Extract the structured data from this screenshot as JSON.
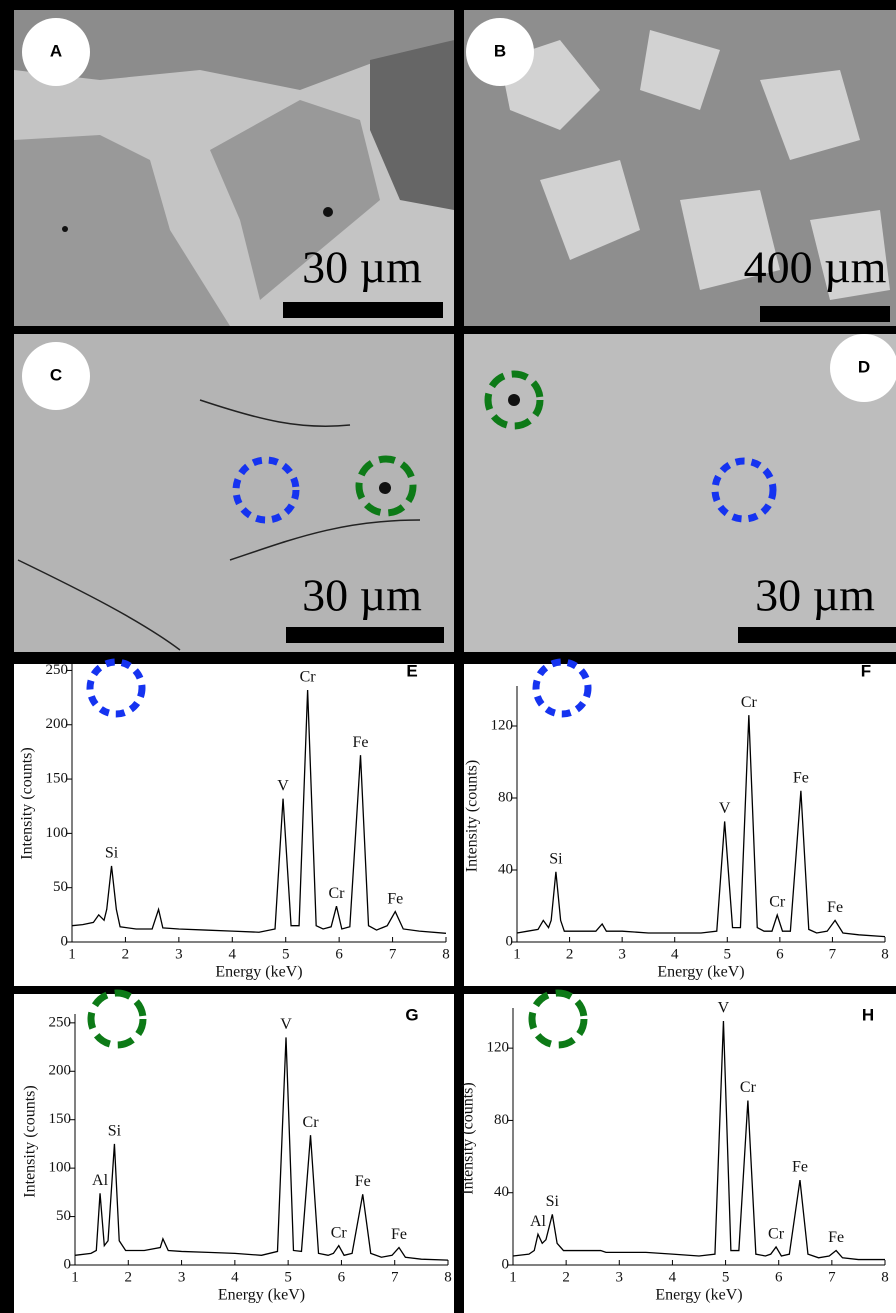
{
  "micrographs": [
    {
      "label": "A",
      "scale": "30 µm"
    },
    {
      "label": "B",
      "scale": "400 µm"
    },
    {
      "label": "C",
      "scale": "30 µm"
    },
    {
      "label": "D",
      "scale": "30 µm"
    }
  ],
  "chart_data": [
    {
      "type": "line",
      "panel_label": "E",
      "xlabel": "Energy (keV)",
      "ylabel": "Intensity (counts)",
      "xlim": [
        1,
        8
      ],
      "xticks": [
        1,
        2,
        3,
        4,
        5,
        6,
        7,
        8
      ],
      "ylim": [
        0,
        255
      ],
      "yticks": [
        0,
        50,
        100,
        150,
        200,
        250
      ],
      "annotations": [
        "Si",
        "V",
        "Cr",
        "Cr",
        "Fe",
        "Fe"
      ],
      "series": [
        {
          "color": "#000000",
          "x": [
            1,
            1.2,
            1.4,
            1.5,
            1.6,
            1.65,
            1.74,
            1.83,
            1.9,
            2.2,
            2.5,
            2.62,
            2.7,
            3,
            3.5,
            4,
            4.5,
            4.8,
            4.95,
            5.1,
            5.25,
            5.41,
            5.57,
            5.7,
            5.85,
            5.95,
            6.05,
            6.2,
            6.4,
            6.55,
            6.7,
            6.9,
            7.05,
            7.2,
            7.5,
            8
          ],
          "values": [
            15,
            16,
            18,
            25,
            20,
            30,
            70,
            30,
            14,
            12,
            12,
            30,
            13,
            12,
            11,
            10,
            9,
            12,
            132,
            15,
            15,
            232,
            15,
            12,
            14,
            33,
            12,
            14,
            172,
            15,
            11,
            15,
            28,
            12,
            10,
            8
          ]
        }
      ]
    },
    {
      "type": "line",
      "panel_label": "F",
      "xlabel": "Energy (keV)",
      "ylabel": "Intensity (counts)",
      "xlim": [
        1,
        8
      ],
      "xticks": [
        1,
        2,
        3,
        4,
        5,
        6,
        7,
        8
      ],
      "ylim": [
        0,
        140
      ],
      "yticks": [
        0,
        40,
        80,
        120
      ],
      "annotations": [
        "Si",
        "V",
        "Cr",
        "Cr",
        "Fe",
        "Fe"
      ],
      "series": [
        {
          "color": "#000000",
          "x": [
            1,
            1.2,
            1.4,
            1.5,
            1.6,
            1.65,
            1.74,
            1.83,
            1.9,
            2.2,
            2.5,
            2.62,
            2.7,
            3,
            3.5,
            4,
            4.5,
            4.8,
            4.95,
            5.1,
            5.25,
            5.41,
            5.57,
            5.7,
            5.85,
            5.95,
            6.05,
            6.2,
            6.4,
            6.55,
            6.7,
            6.9,
            7.05,
            7.2,
            7.5,
            8
          ],
          "values": [
            5,
            6,
            7,
            12,
            8,
            12,
            39,
            12,
            6,
            6,
            6,
            10,
            6,
            6,
            5,
            5,
            5,
            6,
            67,
            8,
            8,
            126,
            8,
            6,
            6,
            15,
            6,
            6,
            84,
            7,
            5,
            6,
            12,
            5,
            4,
            3
          ]
        }
      ]
    },
    {
      "type": "line",
      "panel_label": "G",
      "xlabel": "Energy (keV)",
      "ylabel": "Intensity (counts)",
      "xlim": [
        1,
        8
      ],
      "xticks": [
        1,
        2,
        3,
        4,
        5,
        6,
        7,
        8
      ],
      "ylim": [
        0,
        255
      ],
      "yticks": [
        0,
        50,
        100,
        150,
        200,
        250
      ],
      "annotations": [
        "Al",
        "Si",
        "V",
        "Cr",
        "Cr",
        "Fe",
        "Fe"
      ],
      "series": [
        {
          "color": "#000000",
          "x": [
            1,
            1.3,
            1.4,
            1.47,
            1.55,
            1.62,
            1.74,
            1.83,
            1.95,
            2.3,
            2.6,
            2.65,
            2.75,
            3,
            3.5,
            4,
            4.5,
            4.8,
            4.96,
            5.1,
            5.25,
            5.42,
            5.57,
            5.75,
            5.85,
            5.95,
            6.05,
            6.2,
            6.4,
            6.55,
            6.75,
            6.95,
            7.08,
            7.2,
            7.5,
            8
          ],
          "values": [
            10,
            12,
            15,
            74,
            20,
            25,
            125,
            25,
            15,
            15,
            18,
            27,
            15,
            14,
            13,
            12,
            10,
            14,
            235,
            15,
            14,
            134,
            12,
            10,
            12,
            20,
            10,
            12,
            73,
            12,
            8,
            10,
            18,
            8,
            6,
            5
          ]
        }
      ]
    },
    {
      "type": "line",
      "panel_label": "H",
      "xlabel": "Energy (keV)",
      "ylabel": "Intensity (counts)",
      "xlim": [
        1,
        8
      ],
      "xticks": [
        1,
        2,
        3,
        4,
        5,
        6,
        7,
        8
      ],
      "ylim": [
        0,
        140
      ],
      "yticks": [
        0,
        40,
        80,
        120
      ],
      "annotations": [
        "Al",
        "Si",
        "V",
        "Cr",
        "Cr",
        "Fe",
        "Fe"
      ],
      "series": [
        {
          "color": "#000000",
          "x": [
            1,
            1.3,
            1.4,
            1.47,
            1.55,
            1.62,
            1.74,
            1.83,
            1.95,
            2.3,
            2.6,
            2.65,
            2.75,
            3,
            3.5,
            4,
            4.5,
            4.8,
            4.96,
            5.1,
            5.25,
            5.42,
            5.57,
            5.75,
            5.85,
            5.95,
            6.05,
            6.2,
            6.4,
            6.55,
            6.75,
            6.95,
            7.08,
            7.2,
            7.5,
            8
          ],
          "values": [
            5,
            6,
            8,
            17,
            12,
            14,
            28,
            12,
            8,
            8,
            8,
            8,
            7,
            7,
            7,
            6,
            5,
            6,
            135,
            8,
            8,
            91,
            6,
            5,
            6,
            10,
            5,
            6,
            47,
            6,
            4,
            5,
            8,
            4,
            3,
            3
          ]
        }
      ]
    }
  ]
}
